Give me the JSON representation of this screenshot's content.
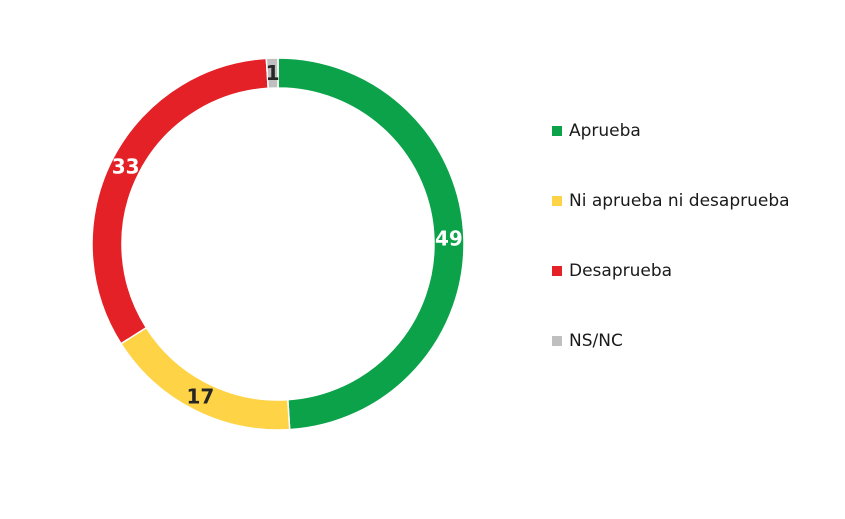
{
  "chart_data": {
    "type": "pie",
    "variant": "donut",
    "title": "",
    "categories": [
      "Aprueba",
      "Ni aprueba ni desaprueba",
      "Desaprueba",
      "NS/NC"
    ],
    "values": [
      49,
      17,
      33,
      1
    ],
    "value_labels": [
      "49",
      "17",
      "33",
      "1"
    ],
    "colors": [
      "#0ba24a",
      "#fed346",
      "#e42126",
      "#bfbfbf"
    ],
    "label_colors": [
      "#ffffff",
      "#262626",
      "#ffffff",
      "#262626"
    ],
    "start": "top, clockwise",
    "legend_position": "right"
  },
  "legend": {
    "items": [
      {
        "label": "Aprueba",
        "color": "#0ba24a"
      },
      {
        "label": "Ni aprueba ni desaprueba",
        "color": "#fed346"
      },
      {
        "label": "Desaprueba",
        "color": "#e42126"
      },
      {
        "label": "NS/NC",
        "color": "#bfbfbf"
      }
    ]
  }
}
